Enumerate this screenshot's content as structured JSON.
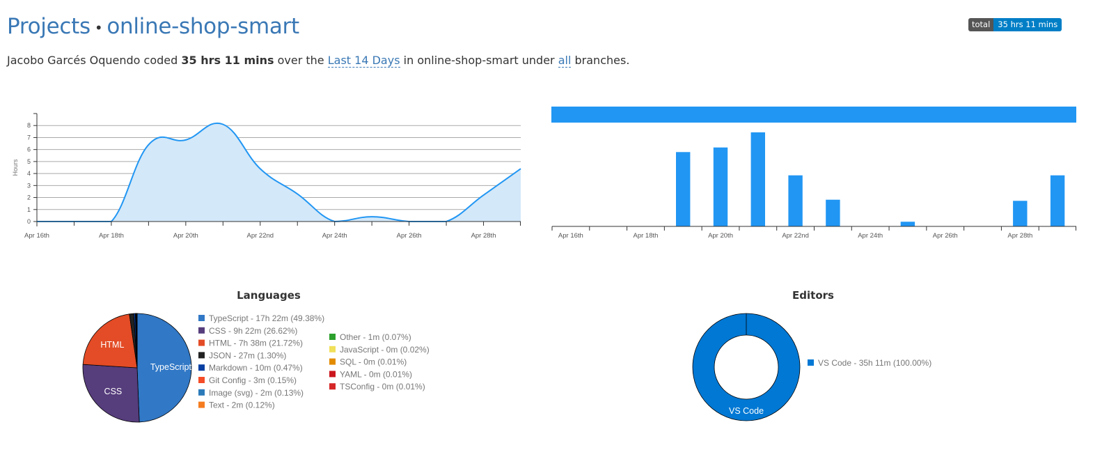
{
  "header": {
    "projects_link": "Projects",
    "separator": "•",
    "project_name": "online-shop-smart",
    "badge_label": "total",
    "badge_value": "35 hrs 11 mins"
  },
  "summary": {
    "user": "Jacobo Garcés Oquendo",
    "coded": "coded",
    "total": "35 hrs 11 mins",
    "over_the": "over the",
    "range": "Last 14 Days",
    "in": "in",
    "project": "online-shop-smart",
    "under": "under",
    "branch": "all",
    "tail": "branches."
  },
  "chart_data": [
    {
      "type": "area",
      "ylabel": "Hours",
      "ylim": [
        0,
        9
      ],
      "yticks": [
        0,
        1,
        2,
        3,
        4,
        5,
        6,
        7,
        8
      ],
      "x": [
        "Apr 16",
        "Apr 17",
        "Apr 18",
        "Apr 19",
        "Apr 20",
        "Apr 21",
        "Apr 22",
        "Apr 23",
        "Apr 24",
        "Apr 25",
        "Apr 26",
        "Apr 27",
        "Apr 28",
        "Apr 29"
      ],
      "xticks": [
        "Apr 16th",
        "Apr 18th",
        "Apr 20th",
        "Apr 22nd",
        "Apr 24th",
        "Apr 26th",
        "Apr 28th"
      ],
      "values": [
        0,
        0,
        0,
        6.4,
        6.8,
        8.1,
        4.4,
        2.3,
        0,
        0.4,
        0,
        0,
        2.2,
        4.4
      ],
      "color": "#2196f3",
      "fill": "#d3e8f9"
    },
    {
      "type": "bar",
      "x": [
        "Apr 16",
        "Apr 17",
        "Apr 18",
        "Apr 19",
        "Apr 20",
        "Apr 21",
        "Apr 22",
        "Apr 23",
        "Apr 24",
        "Apr 25",
        "Apr 26",
        "Apr 27",
        "Apr 28",
        "Apr 29"
      ],
      "xticks": [
        "Apr 16th",
        "Apr 18th",
        "Apr 20th",
        "Apr 22nd",
        "Apr 24th",
        "Apr 26th",
        "Apr 28th"
      ],
      "values": [
        0,
        0,
        0,
        6.4,
        6.8,
        8.1,
        4.4,
        2.3,
        0,
        0.4,
        0,
        0,
        2.2,
        4.4
      ],
      "ylim": [
        0,
        9.6
      ],
      "color": "#2196f3"
    },
    {
      "type": "pie",
      "title": "Languages",
      "slices": [
        {
          "name": "TypeScript",
          "legend": "TypeScript - 17h 22m (49.38%)",
          "value": 49.38,
          "color": "#3178c6",
          "label": "TypeScript"
        },
        {
          "name": "CSS",
          "legend": "CSS - 9h 22m (26.62%)",
          "value": 26.62,
          "color": "#563d7c",
          "label": "CSS"
        },
        {
          "name": "HTML",
          "legend": "HTML - 7h 38m (21.72%)",
          "value": 21.72,
          "color": "#e34c26",
          "label": "HTML"
        },
        {
          "name": "JSON",
          "legend": "JSON - 27m (1.30%)",
          "value": 1.3,
          "color": "#222222",
          "label": ""
        },
        {
          "name": "Markdown",
          "legend": "Markdown - 10m (0.47%)",
          "value": 0.47,
          "color": "#083fa1",
          "label": ""
        },
        {
          "name": "Git Config",
          "legend": "Git Config - 3m (0.15%)",
          "value": 0.15,
          "color": "#f44d27",
          "label": ""
        },
        {
          "name": "Image (svg)",
          "legend": "Image (svg) - 2m (0.13%)",
          "value": 0.13,
          "color": "#2b7bb9",
          "label": ""
        },
        {
          "name": "Text",
          "legend": "Text - 2m (0.12%)",
          "value": 0.12,
          "color": "#f57c1f",
          "label": ""
        },
        {
          "name": "Other",
          "legend": "Other - 1m (0.07%)",
          "value": 0.07,
          "color": "#2ca02c",
          "label": ""
        },
        {
          "name": "JavaScript",
          "legend": "JavaScript - 0m (0.02%)",
          "value": 0.02,
          "color": "#f1e05a",
          "label": ""
        },
        {
          "name": "SQL",
          "legend": "SQL - 0m (0.01%)",
          "value": 0.01,
          "color": "#e38c00",
          "label": ""
        },
        {
          "name": "YAML",
          "legend": "YAML - 0m (0.01%)",
          "value": 0.01,
          "color": "#cb171e",
          "label": ""
        },
        {
          "name": "TSConfig",
          "legend": "TSConfig - 0m (0.01%)",
          "value": 0.01,
          "color": "#d62728",
          "label": ""
        }
      ]
    },
    {
      "type": "pie",
      "title": "Editors",
      "slices": [
        {
          "name": "VS Code",
          "legend": "VS Code - 35h 11m (100.00%)",
          "value": 100.0,
          "color": "#0078d4",
          "label": "VS Code"
        }
      ]
    }
  ]
}
